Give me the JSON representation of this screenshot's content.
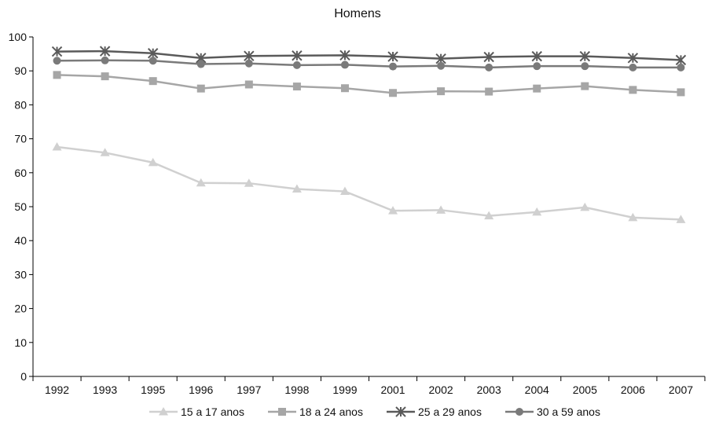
{
  "chart_data": {
    "type": "line",
    "title": "Homens",
    "xlabel": "",
    "ylabel": "",
    "categories": [
      "1992",
      "1993",
      "1995",
      "1996",
      "1997",
      "1998",
      "1999",
      "2001",
      "2002",
      "2003",
      "2004",
      "2005",
      "2006",
      "2007"
    ],
    "ylim": [
      0,
      100
    ],
    "yticks": [
      0,
      10,
      20,
      30,
      40,
      50,
      60,
      70,
      80,
      90,
      100
    ],
    "grid": false,
    "legend_position": "bottom",
    "series": [
      {
        "name": "15 a 17 anos",
        "marker": "triangle",
        "color": "#d0d0d0",
        "values": [
          67.6,
          65.9,
          63.0,
          57.0,
          56.9,
          55.2,
          54.5,
          48.8,
          49.0,
          47.3,
          48.4,
          49.8,
          46.8,
          46.2
        ]
      },
      {
        "name": "18 a 24 anos",
        "marker": "square",
        "color": "#a6a6a6",
        "values": [
          88.8,
          88.4,
          87.0,
          84.8,
          86.0,
          85.4,
          84.9,
          83.5,
          84.0,
          83.9,
          84.8,
          85.5,
          84.4,
          83.7
        ]
      },
      {
        "name": "25 a 29 anos",
        "marker": "asterisk",
        "color": "#5a5a5a",
        "values": [
          95.7,
          95.8,
          95.2,
          93.8,
          94.4,
          94.5,
          94.6,
          94.2,
          93.6,
          94.1,
          94.3,
          94.3,
          93.8,
          93.2
        ]
      },
      {
        "name": "30 a 59 anos",
        "marker": "circle",
        "color": "#7a7a7a",
        "values": [
          93.0,
          93.1,
          93.0,
          92.0,
          92.2,
          91.7,
          91.8,
          91.3,
          91.5,
          91.0,
          91.4,
          91.4,
          91.0,
          91.0
        ]
      }
    ]
  }
}
